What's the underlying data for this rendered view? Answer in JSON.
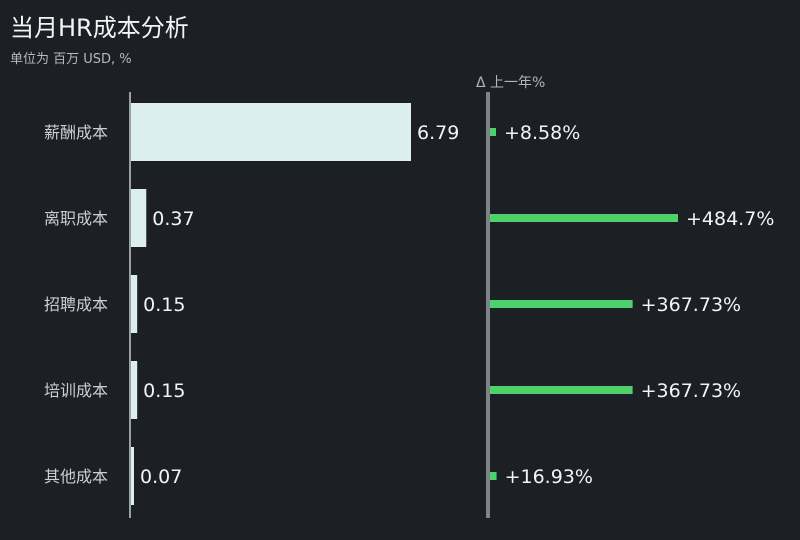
{
  "chart_data": {
    "type": "bar",
    "title": "当月HR成本分析",
    "subtitle": "单位为 百万 USD, %",
    "delta_header": "Δ 上一年%",
    "categories": [
      "薪酬成本",
      "离职成本",
      "招聘成本",
      "培训成本",
      "其他成本"
    ],
    "values": [
      6.79,
      0.37,
      0.15,
      0.15,
      0.07
    ],
    "value_labels": [
      "6.79",
      "0.37",
      "0.15",
      "0.15",
      "0.07"
    ],
    "delta_values": [
      8.58,
      484.7,
      367.73,
      367.73,
      16.93
    ],
    "delta_labels": [
      "+8.58%",
      "+484.7%",
      "+367.73%",
      "+367.73%",
      "+16.93%"
    ],
    "xlim": [
      0,
      6.79
    ],
    "delta_xlim": [
      0,
      484.7
    ],
    "colors": {
      "bar": "#dceeee",
      "delta_bar": "#4ed06a",
      "axis": "#9aa0a6",
      "delta_axis": "#7d8388",
      "background": "#1c1f24"
    }
  }
}
